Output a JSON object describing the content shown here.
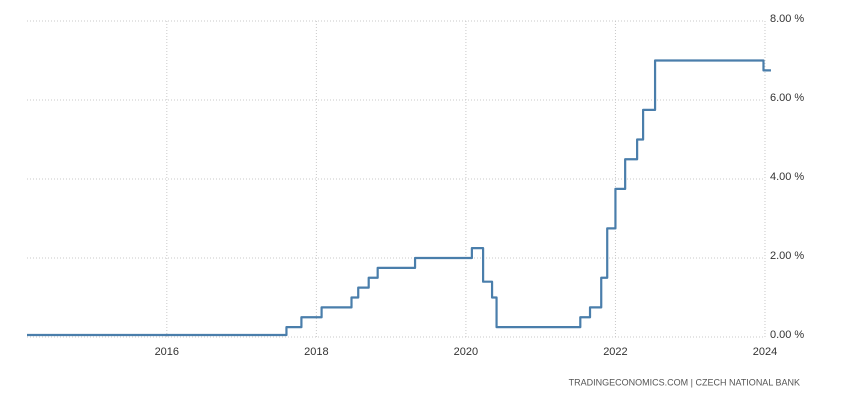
{
  "chart_data": {
    "type": "line",
    "source": "TRADINGECONOMICS.COM  |  CZECH NATIONAL BANK",
    "x": [
      2014.13,
      2017.6,
      2017.6,
      2017.8,
      2017.8,
      2018.07,
      2018.07,
      2018.47,
      2018.47,
      2018.56,
      2018.56,
      2018.7,
      2018.7,
      2018.82,
      2018.82,
      2019.32,
      2019.32,
      2020.08,
      2020.08,
      2020.23,
      2020.23,
      2020.35,
      2020.35,
      2020.41,
      2020.41,
      2021.53,
      2021.53,
      2021.66,
      2021.66,
      2021.81,
      2021.81,
      2021.89,
      2021.89,
      2022.0,
      2022.0,
      2022.13,
      2022.13,
      2022.29,
      2022.29,
      2022.37,
      2022.37,
      2022.53,
      2022.53,
      2023.98,
      2023.98,
      2024.08
    ],
    "series": [
      {
        "color": "#4a7eab",
        "values": [
          0.05,
          0.05,
          0.25,
          0.25,
          0.5,
          0.5,
          0.75,
          0.75,
          1.0,
          1.0,
          1.25,
          1.25,
          1.5,
          1.5,
          1.75,
          1.75,
          2.0,
          2.0,
          2.25,
          2.25,
          1.4,
          1.4,
          1.0,
          1.0,
          0.25,
          0.25,
          0.5,
          0.5,
          0.75,
          0.75,
          1.5,
          1.5,
          2.75,
          2.75,
          3.75,
          3.75,
          4.5,
          4.5,
          5.0,
          5.0,
          5.75,
          5.75,
          7.0,
          7.0,
          6.75,
          6.75
        ]
      }
    ],
    "xlim": [
      2014.13,
      2024.13
    ],
    "xticks": [
      2016,
      2018,
      2020,
      2022,
      2024
    ],
    "ylim": [
      0,
      8
    ],
    "yticks": [
      {
        "value": 0,
        "label": "0.00 %"
      },
      {
        "value": 2,
        "label": "2.00 %"
      },
      {
        "value": 4,
        "label": "4.00 %"
      },
      {
        "value": 6,
        "label": "6.00 %"
      },
      {
        "value": 8,
        "label": "8.00 %"
      }
    ],
    "grid": true
  }
}
